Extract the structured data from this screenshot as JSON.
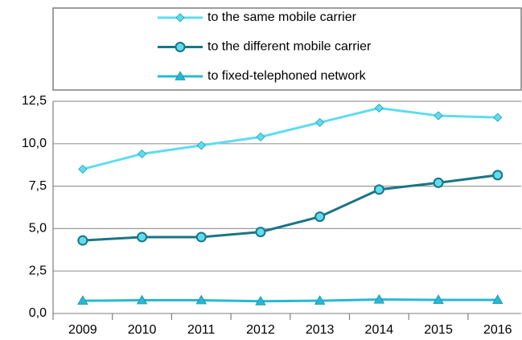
{
  "chart_data": {
    "type": "line",
    "categories": [
      "2009",
      "2010",
      "2011",
      "2012",
      "2013",
      "2014",
      "2015",
      "2016"
    ],
    "series": [
      {
        "name": "to the same mobile carrier",
        "color": "#5fdcf0",
        "marker": "diamond",
        "values": [
          8.5,
          9.4,
          9.9,
          10.4,
          11.25,
          12.1,
          11.65,
          11.55
        ]
      },
      {
        "name": "to the different mobile carrier",
        "color": "#1a7585",
        "marker": "circle",
        "values": [
          4.3,
          4.5,
          4.5,
          4.8,
          5.7,
          7.3,
          7.7,
          8.15
        ]
      },
      {
        "name": "to fixed-telephoned network",
        "color": "#29b8d4",
        "marker": "triangle",
        "values": [
          0.75,
          0.78,
          0.78,
          0.72,
          0.75,
          0.82,
          0.8,
          0.8
        ]
      }
    ],
    "ylim": [
      0,
      12.5
    ],
    "yticks": [
      {
        "value": 0,
        "label": "0,0"
      },
      {
        "value": 2.5,
        "label": "2,5"
      },
      {
        "value": 5,
        "label": "5,0"
      },
      {
        "value": 7.5,
        "label": "7,5"
      },
      {
        "value": 10,
        "label": "10,0"
      },
      {
        "value": 12.5,
        "label": "12,5"
      }
    ],
    "grid": true,
    "legend": "top"
  }
}
